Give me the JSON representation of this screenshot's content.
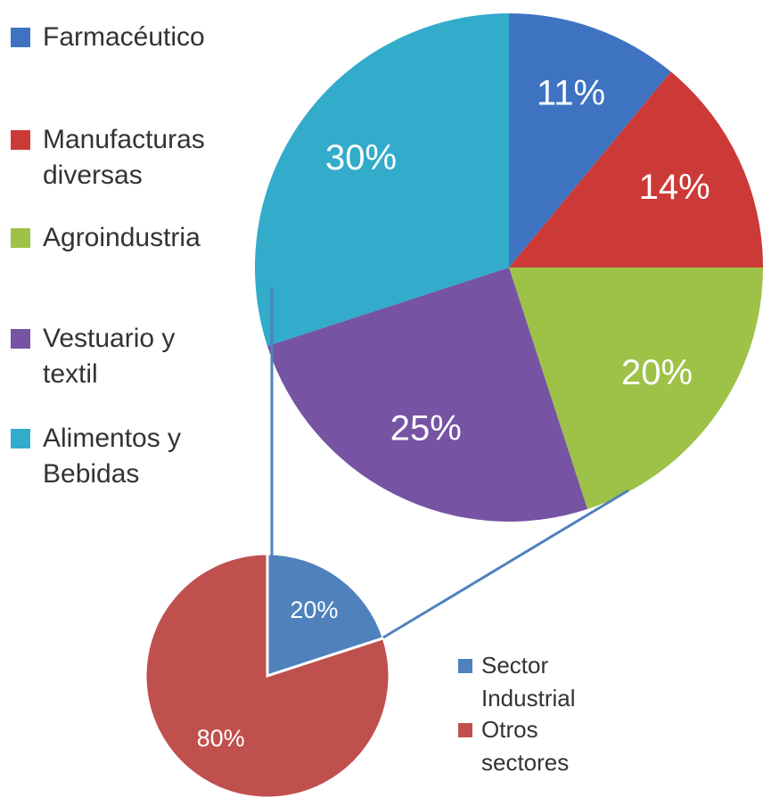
{
  "chart_data": [
    {
      "type": "pie",
      "categories": [
        "Farmacéutico",
        "Manufacturas diversas",
        "Agroindustria",
        "Vestuario y textil",
        "Alimentos y Bebidas"
      ],
      "values": [
        11,
        14,
        20,
        25,
        30
      ],
      "value_labels": [
        "11%",
        "14%",
        "20%",
        "25%",
        "30%"
      ],
      "colors": [
        "#3e73c2",
        "#cc3a37",
        "#9dc247",
        "#7653a3",
        "#33abcb"
      ],
      "legend": "left"
    },
    {
      "type": "pie",
      "categories": [
        "Sector Industrial",
        "Otros sectores"
      ],
      "values": [
        20,
        80
      ],
      "value_labels": [
        "20%",
        "80%"
      ],
      "colors": [
        "#4f81bd",
        "#c0504d"
      ],
      "legend": "right"
    }
  ]
}
